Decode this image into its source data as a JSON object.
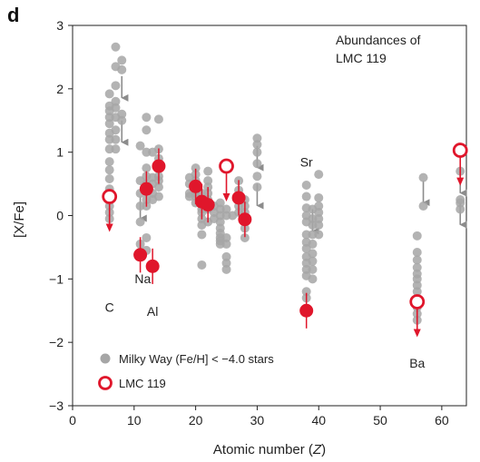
{
  "panel_label": "d",
  "chart_data": {
    "type": "scatter",
    "title": "Abundances of LMC 119",
    "title_lines": [
      "Abundances of",
      "LMC 119"
    ],
    "xlabel_prefix": "Atomic number (",
    "xlabel_var": "Z",
    "xlabel_suffix": ")",
    "ylabel": "[X/Fe]",
    "xlim": [
      0,
      64
    ],
    "ylim": [
      -3,
      3
    ],
    "xticks": [
      0,
      10,
      20,
      30,
      40,
      50,
      60
    ],
    "yticks": [
      -3,
      -2,
      -1,
      0,
      1,
      2,
      3
    ],
    "grid": false,
    "legend_position": "bottom-left",
    "legend": [
      {
        "label": "Milky Way (Fe/H] < −4.0 stars",
        "color": "#a6a6a6",
        "marker": "filled-circle"
      },
      {
        "label": "LMC 119",
        "color": "#e0162b",
        "marker": "open-circle"
      }
    ],
    "element_labels": [
      {
        "text": "C",
        "x": 6,
        "y": -1.52
      },
      {
        "text": "Na",
        "x": 11.4,
        "y": -1.07
      },
      {
        "text": "Al",
        "x": 13,
        "y": -1.58
      },
      {
        "text": "Sr",
        "x": 38,
        "y": 0.77
      },
      {
        "text": "Ba",
        "x": 56,
        "y": -2.4
      }
    ],
    "series": [
      {
        "name": "Milky Way (Fe/H] < −4.0 stars",
        "color": "#a6a6a6",
        "points": [
          [
            6,
            1.92
          ],
          [
            6,
            1.73
          ],
          [
            6,
            1.65
          ],
          [
            6,
            1.55
          ],
          [
            6,
            1.45
          ],
          [
            6,
            1.3
          ],
          [
            6,
            1.2
          ],
          [
            6,
            1.05
          ],
          [
            6,
            0.85
          ],
          [
            6,
            0.72
          ],
          [
            6,
            0.58
          ],
          [
            6,
            0.42
          ],
          [
            6,
            0.3
          ],
          [
            6,
            0.15
          ],
          [
            6,
            0.05
          ],
          [
            6,
            -0.05
          ],
          [
            7,
            2.66
          ],
          [
            7,
            2.35
          ],
          [
            7,
            2.05
          ],
          [
            7,
            1.8
          ],
          [
            7,
            1.7
          ],
          [
            7,
            1.55
          ],
          [
            7,
            1.35
          ],
          [
            7,
            1.2
          ],
          [
            7,
            1.05
          ],
          [
            8,
            2.45
          ],
          [
            8,
            2.3
          ],
          [
            8,
            1.6
          ],
          [
            8,
            1.5
          ],
          [
            11,
            1.1
          ],
          [
            11,
            0.55
          ],
          [
            11,
            0.35
          ],
          [
            11,
            0.15
          ],
          [
            11,
            -0.1
          ],
          [
            11,
            -0.45
          ],
          [
            12,
            1.55
          ],
          [
            12,
            1.35
          ],
          [
            12,
            1.0
          ],
          [
            12,
            0.75
          ],
          [
            12,
            0.62
          ],
          [
            12,
            0.5
          ],
          [
            12,
            0.38
          ],
          [
            12,
            0.25
          ],
          [
            12,
            0.15
          ],
          [
            12,
            -0.35
          ],
          [
            12,
            -0.55
          ],
          [
            13,
            1.0
          ],
          [
            13,
            0.6
          ],
          [
            13,
            0.5
          ],
          [
            13,
            0.35
          ],
          [
            13,
            0.25
          ],
          [
            14,
            1.52
          ],
          [
            14,
            1.05
          ],
          [
            14,
            0.9
          ],
          [
            14,
            0.62
          ],
          [
            14,
            0.55
          ],
          [
            14,
            0.45
          ],
          [
            14,
            0.3
          ],
          [
            19,
            0.6
          ],
          [
            19,
            0.5
          ],
          [
            19,
            0.35
          ],
          [
            19,
            0.3
          ],
          [
            20,
            0.75
          ],
          [
            20,
            0.65
          ],
          [
            20,
            0.55
          ],
          [
            20,
            0.5
          ],
          [
            20,
            0.45
          ],
          [
            20,
            0.4
          ],
          [
            20,
            0.35
          ],
          [
            20,
            0.3
          ],
          [
            20,
            0.2
          ],
          [
            21,
            0.35
          ],
          [
            21,
            0.2
          ],
          [
            21,
            0.1
          ],
          [
            21,
            0.05
          ],
          [
            21,
            -0.05
          ],
          [
            21,
            -0.15
          ],
          [
            21,
            -0.3
          ],
          [
            21,
            -0.78
          ],
          [
            22,
            0.7
          ],
          [
            22,
            0.55
          ],
          [
            22,
            0.45
          ],
          [
            22,
            0.35
          ],
          [
            22,
            0.25
          ],
          [
            22,
            0.15
          ],
          [
            22,
            0.1
          ],
          [
            22,
            -0.1
          ],
          [
            23,
            0.15
          ],
          [
            23,
            0.05
          ],
          [
            23,
            -0.05
          ],
          [
            24,
            0.2
          ],
          [
            24,
            0.1
          ],
          [
            24,
            0.0
          ],
          [
            24,
            -0.1
          ],
          [
            24,
            -0.2
          ],
          [
            24,
            -0.28
          ],
          [
            24,
            -0.35
          ],
          [
            24,
            -0.4
          ],
          [
            24,
            -0.45
          ],
          [
            25,
            0.1
          ],
          [
            25,
            0.0
          ],
          [
            25,
            -0.35
          ],
          [
            25,
            -0.45
          ],
          [
            25,
            -0.65
          ],
          [
            25,
            -0.75
          ],
          [
            25,
            -0.85
          ],
          [
            26,
            0.0
          ],
          [
            27,
            0.55
          ],
          [
            27,
            0.4
          ],
          [
            27,
            0.3
          ],
          [
            27,
            0.15
          ],
          [
            27,
            0.05
          ],
          [
            28,
            0.25
          ],
          [
            28,
            0.15
          ],
          [
            28,
            0.05
          ],
          [
            28,
            -0.05
          ],
          [
            28,
            -0.2
          ],
          [
            28,
            -0.35
          ],
          [
            30,
            1.22
          ],
          [
            30,
            1.12
          ],
          [
            30,
            1.0
          ],
          [
            30,
            0.82
          ],
          [
            30,
            0.62
          ],
          [
            30,
            0.45
          ],
          [
            38,
            0.48
          ],
          [
            38,
            0.3
          ],
          [
            38,
            0.12
          ],
          [
            38,
            0.0
          ],
          [
            38,
            -0.1
          ],
          [
            38,
            -0.3
          ],
          [
            38,
            -0.42
          ],
          [
            38,
            -0.52
          ],
          [
            38,
            -0.65
          ],
          [
            38,
            -0.75
          ],
          [
            38,
            -0.85
          ],
          [
            38,
            -0.95
          ],
          [
            38,
            -1.2
          ],
          [
            38,
            -1.3
          ],
          [
            39,
            0.1
          ],
          [
            39,
            -0.05
          ],
          [
            39,
            -0.15
          ],
          [
            39,
            -0.3
          ],
          [
            39,
            -0.45
          ],
          [
            39,
            -0.6
          ],
          [
            39,
            -0.72
          ],
          [
            39,
            -0.85
          ],
          [
            39,
            -1.0
          ],
          [
            40,
            0.65
          ],
          [
            40,
            0.28
          ],
          [
            40,
            0.15
          ],
          [
            40,
            0.05
          ],
          [
            40,
            -0.05
          ],
          [
            40,
            -0.15
          ],
          [
            40,
            -0.3
          ],
          [
            56,
            -0.32
          ],
          [
            56,
            -0.58
          ],
          [
            56,
            -0.7
          ],
          [
            56,
            -0.82
          ],
          [
            56,
            -0.92
          ],
          [
            56,
            -1.0
          ],
          [
            56,
            -1.1
          ],
          [
            56,
            -1.2
          ],
          [
            56,
            -1.32
          ],
          [
            56,
            -1.45
          ],
          [
            56,
            -1.55
          ],
          [
            56,
            -1.65
          ],
          [
            57,
            0.6
          ],
          [
            57,
            0.15
          ],
          [
            63,
            0.7
          ],
          [
            63,
            0.25
          ],
          [
            63,
            0.2
          ],
          [
            63,
            0.1
          ]
        ],
        "upper_limits": [
          [
            8,
            2.2
          ],
          [
            8,
            1.5
          ],
          [
            11,
            0.3
          ],
          [
            30,
            1.1
          ],
          [
            30,
            0.5
          ],
          [
            39,
            0.1
          ],
          [
            57,
            0.55
          ],
          [
            63,
            0.7
          ],
          [
            63,
            0.2
          ]
        ]
      },
      {
        "name": "LMC 119",
        "color": "#e0162b",
        "measurements": [
          {
            "x": 11,
            "y": -0.62
          },
          {
            "x": 12,
            "y": 0.42
          },
          {
            "x": 13,
            "y": -0.8
          },
          {
            "x": 14,
            "y": 0.78
          },
          {
            "x": 20,
            "y": 0.46
          },
          {
            "x": 21,
            "y": 0.22
          },
          {
            "x": 22,
            "y": 0.17
          },
          {
            "x": 27,
            "y": 0.28
          },
          {
            "x": 28,
            "y": -0.06
          },
          {
            "x": 38,
            "y": -1.5
          }
        ],
        "upper_limits": [
          {
            "x": 6,
            "y": 0.3
          },
          {
            "x": 25,
            "y": 0.78
          },
          {
            "x": 56,
            "y": -1.36
          },
          {
            "x": 63,
            "y": 1.03
          }
        ]
      }
    ]
  }
}
